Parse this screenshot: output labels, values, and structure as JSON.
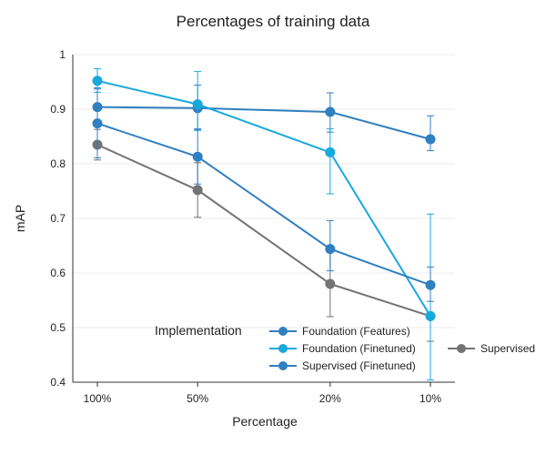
{
  "chart_data": {
    "type": "line",
    "title": "Percentages of training data",
    "xlabel": "Percentage",
    "ylabel": "mAP",
    "categories": [
      "100%",
      "50%",
      "20%",
      "10%"
    ],
    "x": [
      100,
      50,
      20,
      10
    ],
    "x_scale": "log",
    "ylim": [
      0.4,
      1
    ],
    "y_ticks": [
      "0.4",
      "0.5",
      "0.6",
      "0.7",
      "0.8",
      "0.9",
      "1"
    ],
    "grid": true,
    "legend": {
      "title": "Implementation",
      "placement": "bottom-right"
    },
    "series": [
      {
        "name": "Foundation (Features)",
        "color": "#2f7fc1",
        "values": [
          0.874,
          0.813,
          0.644,
          0.578
        ],
        "error_low": [
          0.811,
          0.763,
          0.604,
          0.548
        ],
        "error_high": [
          0.937,
          0.863,
          0.696,
          0.611
        ]
      },
      {
        "name": "Foundation (Finetuned)",
        "color": "#17a9dc",
        "values": [
          0.952,
          0.909,
          0.821,
          0.521
        ],
        "error_low": [
          0.931,
          0.861,
          0.745,
          0.404
        ],
        "error_high": [
          0.974,
          0.969,
          0.864,
          0.708
        ]
      },
      {
        "name": "Supervised (Finetuned)",
        "color": "#2f7fc1",
        "values": [
          0.904,
          0.902,
          0.895,
          0.845
        ],
        "error_low": [
          0.87,
          0.864,
          0.858,
          0.824
        ],
        "error_high": [
          0.939,
          0.944,
          0.93,
          0.888
        ]
      },
      {
        "name": "Supervised",
        "color": "#737373",
        "values": [
          0.835,
          0.752,
          0.58,
          0.521
        ],
        "error_low": [
          0.807,
          0.702,
          0.52,
          0.475
        ],
        "error_high": [
          0.863,
          0.802,
          0.64,
          0.58
        ]
      }
    ]
  }
}
